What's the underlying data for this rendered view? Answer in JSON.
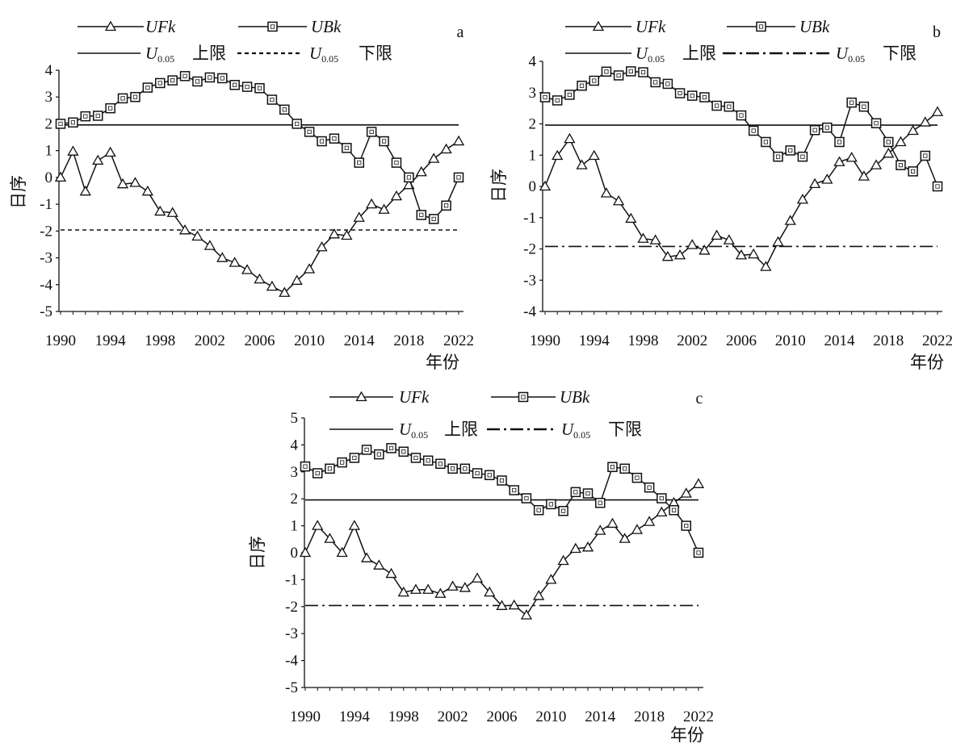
{
  "legend": {
    "ufk": "UFk",
    "ubk": "UBk",
    "u_main": "U",
    "u_sub": "0.05",
    "upper": "上限",
    "lower": "下限"
  },
  "chart_data": [
    {
      "panel": "a",
      "type": "line",
      "xlabel": "年份",
      "ylabel": "日序",
      "x": [
        1990,
        1991,
        1992,
        1993,
        1994,
        1995,
        1996,
        1997,
        1998,
        1999,
        2000,
        2001,
        2002,
        2003,
        2004,
        2005,
        2006,
        2007,
        2008,
        2009,
        2010,
        2011,
        2012,
        2013,
        2014,
        2015,
        2016,
        2017,
        2018,
        2019,
        2020,
        2021,
        2022
      ],
      "xticks": [
        1990,
        1994,
        1998,
        2002,
        2006,
        2010,
        2014,
        2018,
        2022
      ],
      "ylim": [
        -5,
        4
      ],
      "yticks": [
        -5,
        -4,
        -3,
        -2,
        -1,
        0,
        1,
        2,
        3,
        4
      ],
      "ytick_labels": [
        "-5",
        "-4",
        "-3",
        "-2",
        "-1",
        "0",
        "1",
        "2",
        "3",
        "4"
      ],
      "series": [
        {
          "name": "UFk",
          "marker": "triangle",
          "values": [
            0.0,
            0.97,
            -0.52,
            0.63,
            0.93,
            -0.25,
            -0.2,
            -0.52,
            -1.27,
            -1.32,
            -1.97,
            -2.2,
            -2.55,
            -3.0,
            -3.18,
            -3.45,
            -3.8,
            -4.07,
            -4.3,
            -3.85,
            -3.42,
            -2.6,
            -2.12,
            -2.17,
            -1.5,
            -1.0,
            -1.2,
            -0.7,
            -0.28,
            0.2,
            0.7,
            1.05,
            1.35
          ]
        },
        {
          "name": "UBk",
          "marker": "square",
          "values": [
            2.0,
            2.05,
            2.28,
            2.3,
            2.58,
            2.95,
            3.0,
            3.35,
            3.52,
            3.62,
            3.78,
            3.58,
            3.73,
            3.7,
            3.45,
            3.38,
            3.33,
            2.9,
            2.53,
            2.0,
            1.7,
            1.35,
            1.45,
            1.1,
            0.55,
            1.7,
            1.35,
            0.55,
            0.0,
            -1.4,
            -1.55,
            -1.05,
            0.0
          ]
        }
      ],
      "upper": 1.96,
      "lower": -1.96,
      "lower_style": "dotted"
    },
    {
      "panel": "b",
      "type": "line",
      "xlabel": "年份",
      "ylabel": "日序",
      "x": [
        1990,
        1991,
        1992,
        1993,
        1994,
        1995,
        1996,
        1997,
        1998,
        1999,
        2000,
        2001,
        2002,
        2003,
        2004,
        2005,
        2006,
        2007,
        2008,
        2009,
        2010,
        2011,
        2012,
        2013,
        2014,
        2015,
        2016,
        2017,
        2018,
        2019,
        2020,
        2021,
        2022
      ],
      "xticks": [
        1990,
        1994,
        1998,
        2002,
        2006,
        2010,
        2014,
        2018,
        2022
      ],
      "ylim": [
        -4,
        4
      ],
      "yticks": [
        -4,
        -3,
        -2,
        -1,
        0,
        1,
        2,
        3,
        4
      ],
      "ytick_labels": [
        "-4",
        "-3",
        "-2",
        "-1",
        "0",
        "1",
        "2",
        "3",
        "4"
      ],
      "series": [
        {
          "name": "UFk",
          "marker": "triangle",
          "values": [
            0.0,
            0.98,
            1.52,
            0.68,
            0.98,
            -0.22,
            -0.47,
            -1.03,
            -1.67,
            -1.72,
            -2.25,
            -2.2,
            -1.87,
            -2.05,
            -1.57,
            -1.72,
            -2.2,
            -2.17,
            -2.57,
            -1.78,
            -1.1,
            -0.42,
            0.08,
            0.22,
            0.78,
            0.92,
            0.32,
            0.68,
            1.05,
            1.42,
            1.78,
            2.05,
            2.38
          ]
        },
        {
          "name": "UBk",
          "marker": "square",
          "values": [
            2.85,
            2.75,
            2.93,
            3.22,
            3.38,
            3.67,
            3.55,
            3.68,
            3.65,
            3.33,
            3.28,
            2.98,
            2.9,
            2.85,
            2.58,
            2.55,
            2.27,
            1.78,
            1.42,
            0.95,
            1.15,
            0.95,
            1.8,
            1.88,
            1.42,
            2.68,
            2.55,
            2.02,
            1.42,
            0.68,
            0.48,
            0.98,
            0.0
          ]
        }
      ],
      "upper": 1.96,
      "lower": -1.92,
      "lower_style": "dashdot"
    },
    {
      "panel": "c",
      "type": "line",
      "xlabel": "年份",
      "ylabel": "日序",
      "x": [
        1990,
        1991,
        1992,
        1993,
        1994,
        1995,
        1996,
        1997,
        1998,
        1999,
        2000,
        2001,
        2002,
        2003,
        2004,
        2005,
        2006,
        2007,
        2008,
        2009,
        2010,
        2011,
        2012,
        2013,
        2014,
        2015,
        2016,
        2017,
        2018,
        2019,
        2020,
        2021,
        2022
      ],
      "xticks": [
        1990,
        1994,
        1998,
        2002,
        2006,
        2010,
        2014,
        2018,
        2022
      ],
      "ylim": [
        -5,
        5
      ],
      "yticks": [
        -5,
        -4,
        -3,
        -2,
        -1,
        0,
        1,
        2,
        3,
        4,
        5
      ],
      "ytick_labels": [
        "-5",
        "-4",
        "-3",
        "-2",
        "-1",
        "0",
        "1",
        "2",
        "3",
        "4",
        "5"
      ],
      "series": [
        {
          "name": "UFk",
          "marker": "triangle",
          "values": [
            0.0,
            1.0,
            0.52,
            0.0,
            1.0,
            -0.2,
            -0.47,
            -0.78,
            -1.47,
            -1.37,
            -1.37,
            -1.52,
            -1.25,
            -1.3,
            -0.95,
            -1.47,
            -1.97,
            -1.95,
            -2.32,
            -1.6,
            -1.0,
            -0.3,
            0.15,
            0.2,
            0.82,
            1.08,
            0.52,
            0.85,
            1.15,
            1.5,
            1.85,
            2.2,
            2.55
          ]
        },
        {
          "name": "UBk",
          "marker": "square",
          "values": [
            3.2,
            2.95,
            3.12,
            3.35,
            3.52,
            3.82,
            3.65,
            3.88,
            3.75,
            3.52,
            3.42,
            3.3,
            3.12,
            3.12,
            2.95,
            2.88,
            2.68,
            2.32,
            2.02,
            1.58,
            1.8,
            1.55,
            2.25,
            2.2,
            1.85,
            3.18,
            3.12,
            2.78,
            2.42,
            2.02,
            1.58,
            1.0,
            0.0
          ]
        }
      ],
      "upper": 1.96,
      "lower": -1.96,
      "lower_style": "dashdot"
    }
  ]
}
